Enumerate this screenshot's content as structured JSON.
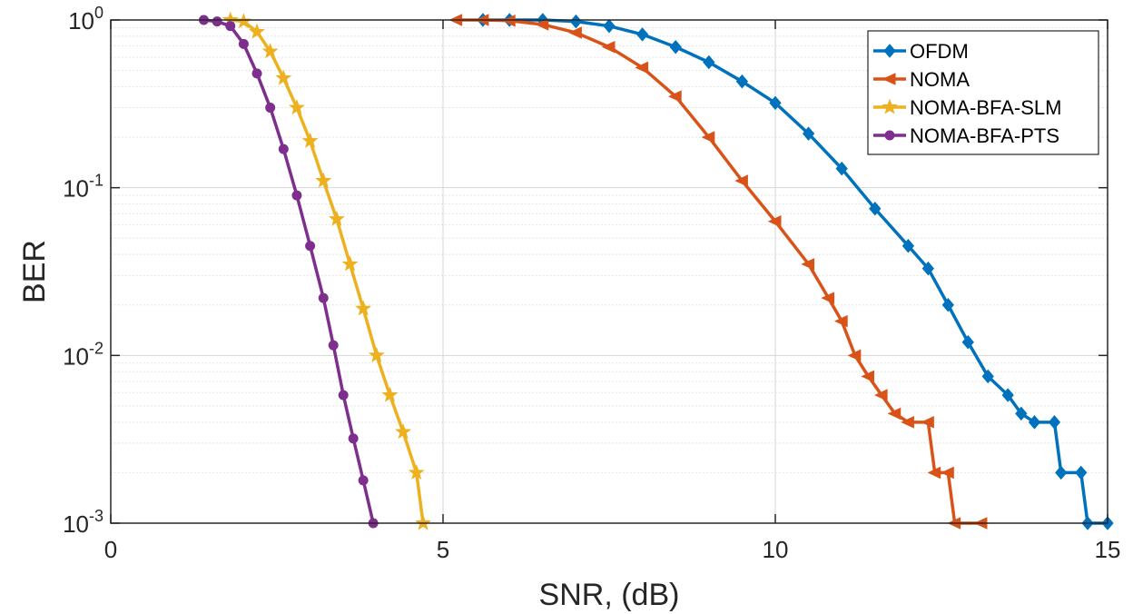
{
  "chart_data": {
    "type": "line",
    "title": "",
    "xlabel": "SNR, (dB)",
    "ylabel": "BER",
    "xscale": "linear",
    "yscale": "log",
    "xlim": [
      0,
      15
    ],
    "ylim": [
      0.001,
      1
    ],
    "xticks": [
      0,
      5,
      10,
      15
    ],
    "xtick_labels": [
      "0",
      "5",
      "10",
      "15"
    ],
    "yticks": [
      0.001,
      0.01,
      0.1,
      1
    ],
    "ytick_labels": [
      {
        "base": "10",
        "exp": "-3"
      },
      {
        "base": "10",
        "exp": "-2"
      },
      {
        "base": "10",
        "exp": "-1"
      },
      {
        "base": "10",
        "exp": "0"
      }
    ],
    "grid": true,
    "minor_grid": true,
    "legend_position": "top-right",
    "series": [
      {
        "name": "OFDM",
        "color": "#0072BD",
        "marker": "diamond",
        "points": [
          [
            5.6,
            1.0
          ],
          [
            6.0,
            1.0
          ],
          [
            6.5,
            1.0
          ],
          [
            7.0,
            0.98
          ],
          [
            7.5,
            0.92
          ],
          [
            8.0,
            0.82
          ],
          [
            8.5,
            0.69
          ],
          [
            9.0,
            0.56
          ],
          [
            9.5,
            0.43
          ],
          [
            10.0,
            0.32
          ],
          [
            10.5,
            0.21
          ],
          [
            11.0,
            0.13
          ],
          [
            11.5,
            0.075
          ],
          [
            12.0,
            0.045
          ],
          [
            12.3,
            0.033
          ],
          [
            12.6,
            0.02
          ],
          [
            12.9,
            0.012
          ],
          [
            13.2,
            0.0075
          ],
          [
            13.5,
            0.0058
          ],
          [
            13.7,
            0.0045
          ],
          [
            13.9,
            0.004
          ],
          [
            14.2,
            0.004
          ],
          [
            14.3,
            0.002
          ],
          [
            14.6,
            0.002
          ],
          [
            14.7,
            0.001
          ],
          [
            15.0,
            0.001
          ]
        ]
      },
      {
        "name": "NOMA",
        "color": "#D95319",
        "marker": "triangle-left",
        "points": [
          [
            5.2,
            1.0
          ],
          [
            5.6,
            1.0
          ],
          [
            6.0,
            0.99
          ],
          [
            6.5,
            0.94
          ],
          [
            7.0,
            0.84
          ],
          [
            7.5,
            0.69
          ],
          [
            8.0,
            0.52
          ],
          [
            8.5,
            0.35
          ],
          [
            9.0,
            0.2
          ],
          [
            9.5,
            0.11
          ],
          [
            10.0,
            0.063
          ],
          [
            10.5,
            0.035
          ],
          [
            10.8,
            0.022
          ],
          [
            11.0,
            0.016
          ],
          [
            11.2,
            0.01
          ],
          [
            11.4,
            0.0075
          ],
          [
            11.6,
            0.0058
          ],
          [
            11.8,
            0.0045
          ],
          [
            12.0,
            0.004
          ],
          [
            12.3,
            0.004
          ],
          [
            12.4,
            0.002
          ],
          [
            12.6,
            0.002
          ],
          [
            12.7,
            0.001
          ],
          [
            13.1,
            0.001
          ]
        ]
      },
      {
        "name": "NOMA-BFA-SLM",
        "color": "#EDB120",
        "marker": "star",
        "points": [
          [
            1.8,
            1.0
          ],
          [
            2.0,
            0.98
          ],
          [
            2.2,
            0.85
          ],
          [
            2.4,
            0.65
          ],
          [
            2.6,
            0.45
          ],
          [
            2.8,
            0.3
          ],
          [
            3.0,
            0.19
          ],
          [
            3.2,
            0.11
          ],
          [
            3.4,
            0.065
          ],
          [
            3.6,
            0.035
          ],
          [
            3.8,
            0.019
          ],
          [
            4.0,
            0.01
          ],
          [
            4.2,
            0.0058
          ],
          [
            4.4,
            0.0035
          ],
          [
            4.6,
            0.002
          ],
          [
            4.7,
            0.001
          ]
        ]
      },
      {
        "name": "NOMA-BFA-PTS",
        "color": "#7E2F8E",
        "marker": "circle",
        "points": [
          [
            1.4,
            1.0
          ],
          [
            1.6,
            0.98
          ],
          [
            1.8,
            0.92
          ],
          [
            2.0,
            0.72
          ],
          [
            2.2,
            0.48
          ],
          [
            2.4,
            0.3
          ],
          [
            2.6,
            0.17
          ],
          [
            2.8,
            0.09
          ],
          [
            3.0,
            0.045
          ],
          [
            3.2,
            0.022
          ],
          [
            3.35,
            0.0115
          ],
          [
            3.5,
            0.0058
          ],
          [
            3.65,
            0.0032
          ],
          [
            3.8,
            0.0018
          ],
          [
            3.95,
            0.001
          ]
        ]
      }
    ]
  }
}
